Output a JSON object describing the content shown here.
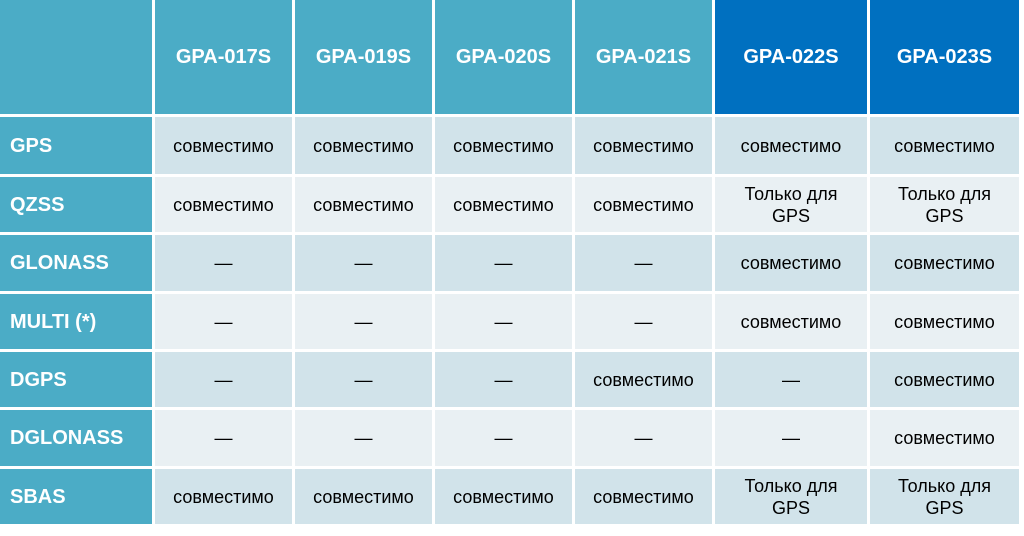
{
  "table": {
    "columns": [
      "GPA-017S",
      "GPA-019S",
      "GPA-020S",
      "GPA-021S",
      "GPA-022S",
      "GPA-023S"
    ],
    "rows": [
      {
        "label": "GPS",
        "cells": [
          "совместимо",
          "совместимо",
          "совместимо",
          "совместимо",
          "совместимо",
          "совместимо"
        ]
      },
      {
        "label": "QZSS",
        "cells": [
          "совместимо",
          "совместимо",
          "совместимо",
          "совместимо",
          "Только для GPS",
          "Только для GPS"
        ]
      },
      {
        "label": "GLONASS",
        "cells": [
          "—",
          "—",
          "—",
          "—",
          "совместимо",
          "совместимо"
        ]
      },
      {
        "label": "MULTI (*)",
        "cells": [
          "—",
          "—",
          "—",
          "—",
          "совместимо",
          "совместимо"
        ]
      },
      {
        "label": "DGPS",
        "cells": [
          "—",
          "—",
          "—",
          "совместимо",
          "—",
          "совместимо"
        ]
      },
      {
        "label": "DGLONASS",
        "cells": [
          "—",
          "—",
          "—",
          "—",
          "—",
          "совместимо"
        ]
      },
      {
        "label": "SBAS",
        "cells": [
          "совместимо",
          "совместимо",
          "совместимо",
          "совместимо",
          "Только для GPS",
          "Только для GPS"
        ]
      }
    ]
  }
}
